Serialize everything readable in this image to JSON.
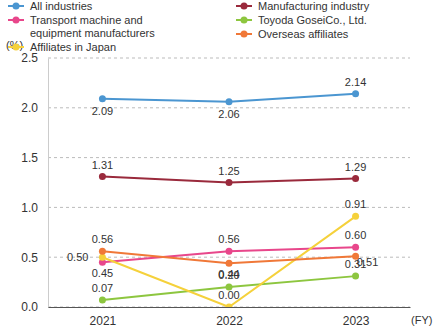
{
  "chart_data": {
    "type": "line",
    "y_label": "(%)",
    "x_label": "(FY)",
    "categories": [
      "2021",
      "2022",
      "2023"
    ],
    "ylim": [
      0,
      2.5
    ],
    "yticks": [
      {
        "value": 0,
        "label": "0.0"
      },
      0.5,
      {
        "value": 1,
        "label": "1.0"
      },
      1.5,
      {
        "value": 2,
        "label": "2.0"
      },
      2.5
    ],
    "grid": true,
    "data_labels": true,
    "marker": "circle",
    "series": [
      {
        "name": "All industries",
        "color": "#4b96d1",
        "values": [
          2.09,
          2.06,
          2.14
        ],
        "value_labels": [
          "2.09",
          "2.06",
          "2.14"
        ]
      },
      {
        "name": "Manufacturing industry",
        "color": "#9a2a3c",
        "values": [
          1.31,
          1.25,
          1.29
        ],
        "value_labels": [
          "1.31",
          "1.25",
          "1.29"
        ]
      },
      {
        "name": "Transport machine and equipment manufacturers",
        "color": "#e8478b",
        "values": [
          0.45,
          0.56,
          0.6
        ],
        "value_labels": [
          "0.45",
          "0.56",
          "0.60"
        ]
      },
      {
        "name": "Toyoda GoseiCo., Ltd.",
        "color": "#8dc63f",
        "values": [
          0.07,
          0.2,
          0.31
        ],
        "value_labels": [
          "0.07",
          "0.20",
          "0.31"
        ]
      },
      {
        "name": "Affiliates in Japan",
        "color": "#f5d13b",
        "values": [
          0.5,
          0.0,
          0.91
        ],
        "value_labels": [
          "0.50",
          "0.00",
          "0.91"
        ]
      },
      {
        "name": "Overseas affiliates",
        "color": "#f07838",
        "values": [
          0.56,
          0.44,
          0.51
        ],
        "value_labels": [
          "0.56",
          "0.44",
          "0.51"
        ]
      }
    ]
  }
}
